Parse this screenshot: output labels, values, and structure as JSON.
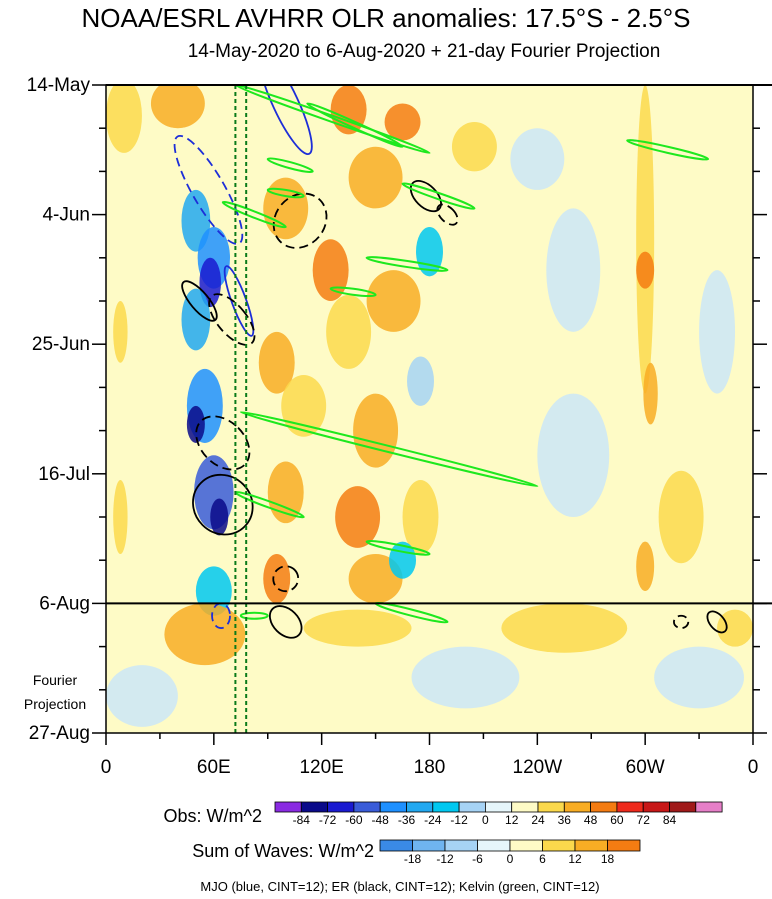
{
  "chart_data": {
    "type": "heatmap",
    "title": "NOAA/ESRL AVHRR OLR anomalies: 17.5°S - 2.5°S",
    "subtitle": "14-May-2020 to 6-Aug-2020 + 21-day Fourier Projection",
    "x_ticks": [
      {
        "lon": 0,
        "label": "0"
      },
      {
        "lon": 60,
        "label": "60E"
      },
      {
        "lon": 120,
        "label": "120E"
      },
      {
        "lon": 180,
        "label": "180"
      },
      {
        "lon": 240,
        "label": "120W"
      },
      {
        "lon": 300,
        "label": "60W"
      },
      {
        "lon": 360,
        "label": "0"
      }
    ],
    "xlim": [
      0,
      360
    ],
    "y_ticks": [
      {
        "day": 0,
        "label": "14-May"
      },
      {
        "day": 21,
        "label": "4-Jun"
      },
      {
        "day": 42,
        "label": "25-Jun"
      },
      {
        "day": 63,
        "label": "16-Jul"
      },
      {
        "day": 84,
        "label": "6-Aug"
      },
      {
        "day": 105,
        "label": "27-Aug"
      }
    ],
    "ylim": [
      0,
      105
    ],
    "observation_end_day": 84,
    "projection_label": [
      "Fourier",
      "Projection"
    ],
    "reference_lons": [
      72,
      78
    ],
    "obs_colorbar": {
      "label": "Obs: W/m^2",
      "ticks": [
        "-84",
        "-72",
        "-60",
        "-48",
        "-36",
        "-24",
        "-12",
        "0",
        "12",
        "24",
        "36",
        "48",
        "60",
        "72",
        "84"
      ],
      "colors": [
        "#8a2be2",
        "#0a0a8a",
        "#1a1ad0",
        "#3a5cd8",
        "#1e90ff",
        "#22a8f0",
        "#00c8f0",
        "#a6d3f5",
        "#e6f6fb",
        "#fefbc6",
        "#fbd94c",
        "#f8ad24",
        "#f47c12",
        "#ee2a1c",
        "#c81818",
        "#a01a1a",
        "#e67fc8"
      ]
    },
    "waves_colorbar": {
      "label": "Sum of Waves: W/m^2",
      "ticks": [
        "-18",
        "-12",
        "-6",
        "0",
        "6",
        "12",
        "18"
      ],
      "colors": [
        "#3a8ae6",
        "#6fb4f0",
        "#a6d3f5",
        "#e6f6fb",
        "#fefbc6",
        "#fbd94c",
        "#f8ad24",
        "#f47c12"
      ]
    },
    "cells": [
      {
        "lon": 10,
        "day": 5,
        "dl": 20,
        "dd": 12,
        "v": 12
      },
      {
        "lon": 40,
        "day": 3,
        "dl": 30,
        "dd": 8,
        "v": 24
      },
      {
        "lon": 135,
        "day": 4,
        "dl": 20,
        "dd": 8,
        "v": 36
      },
      {
        "lon": 150,
        "day": 15,
        "dl": 30,
        "dd": 10,
        "v": 24
      },
      {
        "lon": 165,
        "day": 6,
        "dl": 20,
        "dd": 6,
        "v": 36
      },
      {
        "lon": 205,
        "day": 10,
        "dl": 25,
        "dd": 8,
        "v": 12
      },
      {
        "lon": 50,
        "day": 22,
        "dl": 16,
        "dd": 10,
        "v": -36
      },
      {
        "lon": 60,
        "day": 28,
        "dl": 18,
        "dd": 10,
        "v": -48
      },
      {
        "lon": 58,
        "day": 32,
        "dl": 12,
        "dd": 8,
        "v": -72
      },
      {
        "lon": 50,
        "day": 38,
        "dl": 16,
        "dd": 10,
        "v": -36
      },
      {
        "lon": 100,
        "day": 20,
        "dl": 25,
        "dd": 10,
        "v": 24
      },
      {
        "lon": 125,
        "day": 30,
        "dl": 20,
        "dd": 10,
        "v": 36
      },
      {
        "lon": 160,
        "day": 35,
        "dl": 30,
        "dd": 10,
        "v": 24
      },
      {
        "lon": 180,
        "day": 27,
        "dl": 15,
        "dd": 8,
        "v": -24
      },
      {
        "lon": 135,
        "day": 40,
        "dl": 25,
        "dd": 12,
        "v": 12
      },
      {
        "lon": 95,
        "day": 45,
        "dl": 20,
        "dd": 10,
        "v": 24
      },
      {
        "lon": 55,
        "day": 52,
        "dl": 20,
        "dd": 12,
        "v": -48
      },
      {
        "lon": 50,
        "day": 55,
        "dl": 10,
        "dd": 6,
        "v": -84
      },
      {
        "lon": 110,
        "day": 52,
        "dl": 25,
        "dd": 10,
        "v": 12
      },
      {
        "lon": 150,
        "day": 56,
        "dl": 25,
        "dd": 12,
        "v": 24
      },
      {
        "lon": 175,
        "day": 48,
        "dl": 15,
        "dd": 8,
        "v": -12
      },
      {
        "lon": 60,
        "day": 66,
        "dl": 22,
        "dd": 12,
        "v": -60
      },
      {
        "lon": 63,
        "day": 70,
        "dl": 10,
        "dd": 6,
        "v": -84
      },
      {
        "lon": 100,
        "day": 66,
        "dl": 20,
        "dd": 10,
        "v": 24
      },
      {
        "lon": 140,
        "day": 70,
        "dl": 25,
        "dd": 10,
        "v": 36
      },
      {
        "lon": 175,
        "day": 70,
        "dl": 20,
        "dd": 12,
        "v": 12
      },
      {
        "lon": 150,
        "day": 80,
        "dl": 30,
        "dd": 8,
        "v": 24
      },
      {
        "lon": 165,
        "day": 77,
        "dl": 15,
        "dd": 6,
        "v": -24
      },
      {
        "lon": 95,
        "day": 80,
        "dl": 15,
        "dd": 8,
        "v": 36
      },
      {
        "lon": 60,
        "day": 82,
        "dl": 20,
        "dd": 8,
        "v": -24
      },
      {
        "lon": 55,
        "day": 89,
        "dl": 45,
        "dd": 10,
        "v": 24
      },
      {
        "lon": 140,
        "day": 88,
        "dl": 60,
        "dd": 6,
        "v": 12
      },
      {
        "lon": 255,
        "day": 88,
        "dl": 70,
        "dd": 8,
        "v": 12
      },
      {
        "lon": 350,
        "day": 88,
        "dl": 20,
        "dd": 6,
        "v": 12
      },
      {
        "lon": 300,
        "day": 25,
        "dl": 10,
        "dd": 50,
        "v": 12
      },
      {
        "lon": 300,
        "day": 30,
        "dl": 10,
        "dd": 6,
        "v": 36
      },
      {
        "lon": 303,
        "day": 50,
        "dl": 8,
        "dd": 10,
        "v": 24
      },
      {
        "lon": 300,
        "day": 78,
        "dl": 10,
        "dd": 8,
        "v": 24
      },
      {
        "lon": 260,
        "day": 30,
        "dl": 30,
        "dd": 20,
        "v": -6
      },
      {
        "lon": 260,
        "day": 60,
        "dl": 40,
        "dd": 20,
        "v": -6
      },
      {
        "lon": 200,
        "day": 96,
        "dl": 60,
        "dd": 10,
        "v": -6
      },
      {
        "lon": 20,
        "day": 99,
        "dl": 40,
        "dd": 10,
        "v": -6
      },
      {
        "lon": 330,
        "day": 96,
        "dl": 50,
        "dd": 10,
        "v": -6
      },
      {
        "lon": 8,
        "day": 40,
        "dl": 8,
        "dd": 10,
        "v": 12
      },
      {
        "lon": 8,
        "day": 70,
        "dl": 8,
        "dd": 12,
        "v": 12
      },
      {
        "lon": 340,
        "day": 40,
        "dl": 20,
        "dd": 20,
        "v": -6
      },
      {
        "lon": 320,
        "day": 70,
        "dl": 25,
        "dd": 15,
        "v": 12
      },
      {
        "lon": 240,
        "day": 12,
        "dl": 30,
        "dd": 10,
        "v": -6
      }
    ],
    "mjo_contours": [
      {
        "lon": 57,
        "day": 17,
        "rl": 9,
        "rd": 10,
        "angle": -30,
        "dash": true
      },
      {
        "lon": 100,
        "day": 3,
        "rl": 7,
        "rd": 9,
        "angle": -25,
        "dash": false
      },
      {
        "lon": 74,
        "day": 35,
        "rl": 4,
        "rd": 6,
        "angle": -20,
        "dash": false
      },
      {
        "lon": 64,
        "day": 86,
        "rl": 5,
        "rd": 2,
        "angle": 0,
        "dash": true
      }
    ],
    "er_contours": [
      {
        "lon": 52,
        "day": 35,
        "rl": 5,
        "rd": 4,
        "angle": -40,
        "dash": false
      },
      {
        "lon": 70,
        "day": 38,
        "rl": 8,
        "rd": 5,
        "angle": -40,
        "dash": true
      },
      {
        "lon": 65,
        "day": 58,
        "rl": 12,
        "rd": 5,
        "angle": -45,
        "dash": true
      },
      {
        "lon": 65,
        "day": 68,
        "rl": 16,
        "rd": 5,
        "angle": -45,
        "dash": false
      },
      {
        "lon": 108,
        "day": 22,
        "rl": 16,
        "rd": 4,
        "angle": -50,
        "dash": true
      },
      {
        "lon": 178,
        "day": 18,
        "rl": 6,
        "rd": 3,
        "angle": -45,
        "dash": false
      },
      {
        "lon": 190,
        "day": 21,
        "rl": 4,
        "rd": 2,
        "angle": -45,
        "dash": true
      },
      {
        "lon": 100,
        "day": 80,
        "rl": 7,
        "rd": 2,
        "angle": -45,
        "dash": true
      },
      {
        "lon": 100,
        "day": 87,
        "rl": 7,
        "rd": 3,
        "angle": -45,
        "dash": false
      },
      {
        "lon": 320,
        "day": 87,
        "rl": 4,
        "rd": 1,
        "angle": 0,
        "dash": true
      },
      {
        "lon": 340,
        "day": 87,
        "rl": 4,
        "rd": 2,
        "angle": -40,
        "dash": false
      }
    ],
    "kelvin_contours": [
      {
        "lon1": 72,
        "day1": 0,
        "lon2": 180,
        "day2": 11
      },
      {
        "lon1": 112,
        "day1": 3,
        "lon2": 165,
        "day2": 10
      },
      {
        "lon1": 65,
        "day1": 19,
        "lon2": 100,
        "day2": 23
      },
      {
        "lon1": 90,
        "day1": 12,
        "lon2": 115,
        "day2": 14
      },
      {
        "lon1": 90,
        "day1": 17,
        "lon2": 110,
        "day2": 18
      },
      {
        "lon1": 165,
        "day1": 16,
        "lon2": 205,
        "day2": 20
      },
      {
        "lon1": 145,
        "day1": 28,
        "lon2": 190,
        "day2": 30
      },
      {
        "lon1": 125,
        "day1": 33,
        "lon2": 150,
        "day2": 34
      },
      {
        "lon1": 75,
        "day1": 53,
        "lon2": 240,
        "day2": 65
      },
      {
        "lon1": 72,
        "day1": 66,
        "lon2": 110,
        "day2": 70
      },
      {
        "lon1": 145,
        "day1": 74,
        "lon2": 180,
        "day2": 76
      },
      {
        "lon1": 150,
        "day1": 84,
        "lon2": 190,
        "day2": 87
      },
      {
        "lon1": 290,
        "day1": 9,
        "lon2": 335,
        "day2": 12
      },
      {
        "lon1": 75,
        "day1": 86,
        "lon2": 90,
        "day2": 86
      }
    ]
  },
  "footer": "MJO (blue, CINT=12); ER (black, CINT=12); Kelvin (green, CINT=12)"
}
